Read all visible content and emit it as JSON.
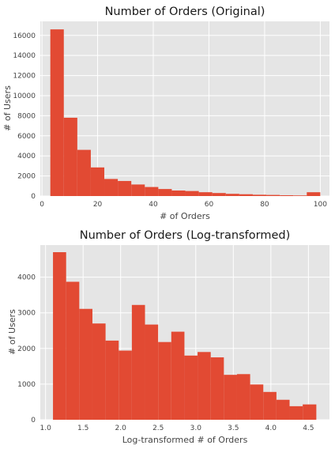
{
  "colors": {
    "bar": "#e24a33",
    "plot_background": "#e5e5e5",
    "grid": "#ffffff"
  },
  "chart_data": [
    {
      "type": "bar",
      "title": "Number of Orders (Original)",
      "xlabel": "# of Orders",
      "ylabel": "# of Users",
      "xlim": [
        -0.6,
        103.3
      ],
      "ylim": [
        0,
        17400
      ],
      "xticks": [
        0,
        20,
        40,
        60,
        80,
        100
      ],
      "yticks": [
        0,
        2000,
        4000,
        6000,
        8000,
        10000,
        12000,
        14000,
        16000
      ],
      "grid": true,
      "bin_edges": [
        3,
        7.85,
        12.7,
        17.55,
        22.4,
        27.25,
        32.1,
        36.95,
        41.8,
        46.65,
        51.5,
        56.35,
        61.2,
        66.05,
        70.9,
        75.75,
        80.6,
        85.45,
        90.3,
        95.15,
        100
      ],
      "values": [
        16600,
        7800,
        4600,
        2850,
        1700,
        1500,
        1150,
        900,
        700,
        550,
        500,
        380,
        300,
        220,
        180,
        130,
        110,
        80,
        60,
        380
      ]
    },
    {
      "type": "bar",
      "title": "Number of Orders (Log-transformed)",
      "xlabel": "Log-transformed # of Orders",
      "ylabel": "# of Users",
      "xlim": [
        0.93,
        4.78
      ],
      "ylim": [
        0,
        4900
      ],
      "xticks": [
        1.0,
        1.5,
        2.0,
        2.5,
        3.0,
        3.5,
        4.0,
        4.5
      ],
      "yticks": [
        0,
        1000,
        2000,
        3000,
        4000
      ],
      "grid": true,
      "bin_edges": [
        1.099,
        1.274,
        1.449,
        1.624,
        1.799,
        1.974,
        2.149,
        2.324,
        2.499,
        2.674,
        2.849,
        3.024,
        3.199,
        3.374,
        3.549,
        3.724,
        3.899,
        4.074,
        4.249,
        4.424,
        4.605
      ],
      "values": [
        4700,
        3870,
        3110,
        2700,
        2220,
        1940,
        3220,
        2670,
        2180,
        2470,
        1800,
        1900,
        1750,
        1260,
        1280,
        990,
        780,
        560,
        380,
        430
      ]
    }
  ]
}
